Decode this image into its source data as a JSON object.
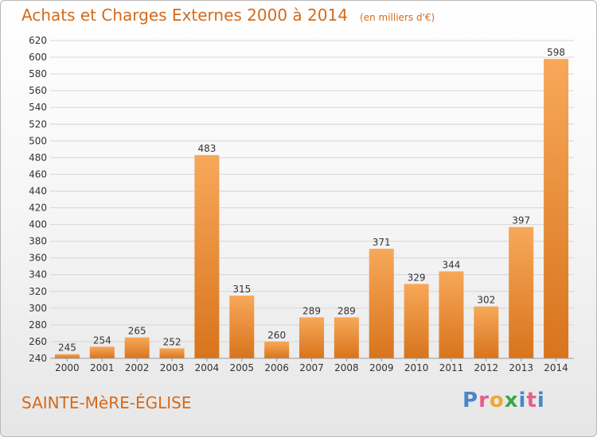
{
  "title": "Achats et Charges Externes 2000 à 2014",
  "unit": "(en milliers d'€)",
  "location": "SAINTE-MèRE-ÉGLISE",
  "brand": {
    "letters": [
      "P",
      "r",
      "o",
      "x",
      "i",
      "t",
      "i"
    ],
    "colors": [
      "#4a86c8",
      "#e85c8a",
      "#f0a830",
      "#3aa84a",
      "#4a86c8",
      "#e85c8a",
      "#4a86c8"
    ]
  },
  "colors": {
    "bar_top": "#f7a85a",
    "bar_bottom": "#d8741c",
    "title": "#d46a1a",
    "grid": "#d6d6d6"
  },
  "chart_data": {
    "type": "bar",
    "categories": [
      "2000",
      "2001",
      "2002",
      "2003",
      "2004",
      "2005",
      "2006",
      "2007",
      "2008",
      "2009",
      "2010",
      "2011",
      "2012",
      "2013",
      "2014"
    ],
    "values": [
      245,
      254,
      265,
      252,
      483,
      315,
      260,
      289,
      289,
      371,
      329,
      344,
      302,
      397,
      598
    ],
    "data_labels": [
      "245",
      "254",
      "265",
      "252",
      "483",
      "315",
      "260",
      "289",
      "289",
      "371",
      "329",
      "344",
      "302",
      "397",
      "598"
    ],
    "title": "Achats et Charges Externes 2000 à 2014",
    "xlabel": "",
    "ylabel": "",
    "ylim": [
      240,
      620
    ],
    "yticks": [
      240,
      260,
      280,
      300,
      320,
      340,
      360,
      380,
      400,
      420,
      440,
      460,
      480,
      500,
      520,
      540,
      560,
      580,
      600,
      620
    ],
    "grid": true,
    "legend": "none"
  }
}
